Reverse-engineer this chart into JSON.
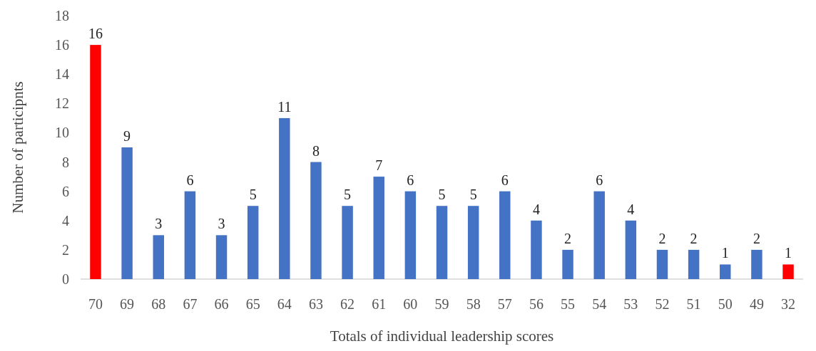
{
  "chart_data": {
    "type": "bar",
    "xlabel": "Totals of individual leadership scores",
    "ylabel": "Number of participnts",
    "categories": [
      "70",
      "69",
      "68",
      "67",
      "66",
      "65",
      "64",
      "63",
      "62",
      "61",
      "60",
      "59",
      "58",
      "57",
      "56",
      "55",
      "54",
      "53",
      "52",
      "51",
      "50",
      "49",
      "32"
    ],
    "values": [
      16,
      9,
      3,
      6,
      3,
      5,
      11,
      8,
      5,
      7,
      6,
      5,
      5,
      6,
      4,
      2,
      6,
      4,
      2,
      2,
      1,
      2,
      1
    ],
    "colors": [
      "#ff0000",
      "#4472c4",
      "#4472c4",
      "#4472c4",
      "#4472c4",
      "#4472c4",
      "#4472c4",
      "#4472c4",
      "#4472c4",
      "#4472c4",
      "#4472c4",
      "#4472c4",
      "#4472c4",
      "#4472c4",
      "#4472c4",
      "#4472c4",
      "#4472c4",
      "#4472c4",
      "#4472c4",
      "#4472c4",
      "#4472c4",
      "#4472c4",
      "#ff0000"
    ],
    "ylim": [
      0,
      18
    ],
    "yticks": [
      0,
      2,
      4,
      6,
      8,
      10,
      12,
      14,
      16,
      18
    ],
    "data_labels": true,
    "grid": false
  }
}
